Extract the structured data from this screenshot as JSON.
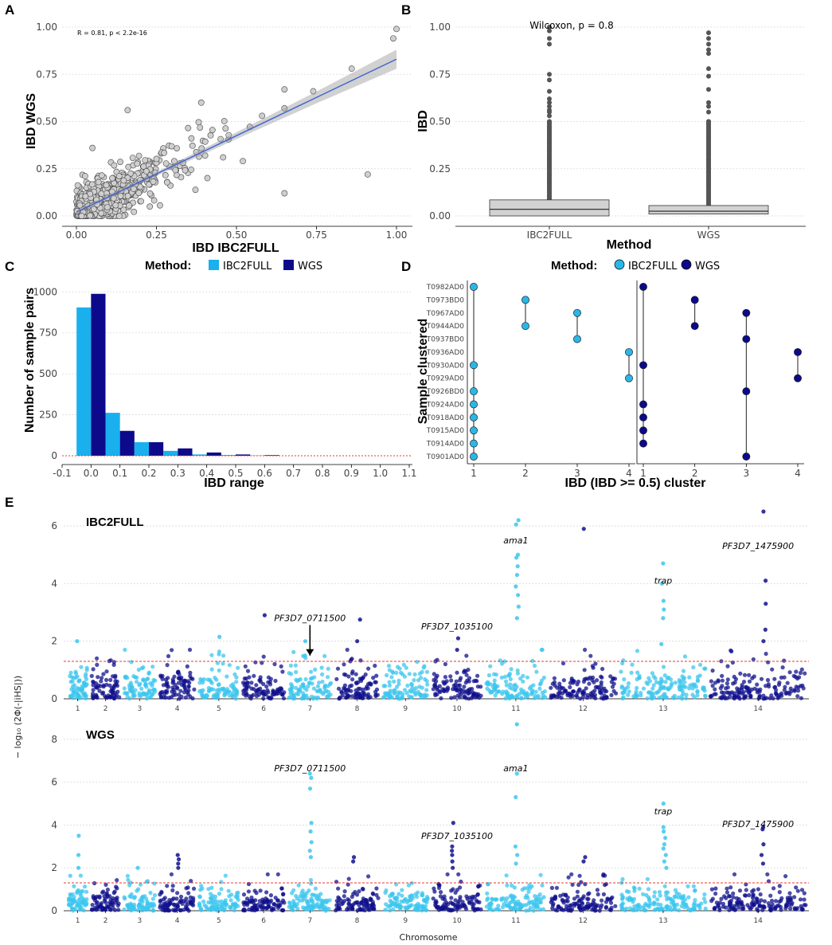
{
  "panels": {
    "A": {
      "letter": "A",
      "chart_data": {
        "type": "scatter",
        "xlabel": "IBD IBC2FULL",
        "ylabel": "IBD WGS",
        "xlim": [
          0,
          1
        ],
        "ylim": [
          0,
          1
        ],
        "xticks": [
          "0.00",
          "0.25",
          "0.50",
          "0.75",
          "1.00"
        ],
        "yticks": [
          "0.00",
          "0.25",
          "0.50",
          "0.75",
          "1.00"
        ],
        "annotation": "R = 0.81, p < 2.2e-16",
        "regression": {
          "intercept": 0.02,
          "slope": 0.81
        },
        "highlight_points": [
          {
            "x": 1.0,
            "y": 0.99
          },
          {
            "x": 0.99,
            "y": 0.94
          },
          {
            "x": 0.91,
            "y": 0.22
          },
          {
            "x": 0.86,
            "y": 0.78
          },
          {
            "x": 0.74,
            "y": 0.66
          },
          {
            "x": 0.65,
            "y": 0.67
          },
          {
            "x": 0.65,
            "y": 0.57
          },
          {
            "x": 0.65,
            "y": 0.12
          },
          {
            "x": 0.58,
            "y": 0.53
          },
          {
            "x": 0.52,
            "y": 0.29
          },
          {
            "x": 0.39,
            "y": 0.6
          },
          {
            "x": 0.16,
            "y": 0.56
          },
          {
            "x": 0.05,
            "y": 0.36
          }
        ],
        "n_points": 600
      }
    },
    "B": {
      "letter": "B",
      "chart_data": {
        "type": "box",
        "xlabel": "Method",
        "ylabel": "IBD",
        "categories": [
          "IBC2FULL",
          "WGS"
        ],
        "yticks": [
          "0.00",
          "0.25",
          "0.50",
          "0.75",
          "1.00"
        ],
        "ylim": [
          0,
          1
        ],
        "annotation": "Wilcoxon, p = 0.8",
        "boxes": [
          {
            "name": "IBC2FULL",
            "q1": 0.0,
            "median": 0.035,
            "q3": 0.085,
            "whisker_high": 0.2,
            "outliers": [
              1.0,
              0.98,
              0.94,
              0.91,
              0.75,
              0.72,
              0.66,
              0.62,
              0.6,
              0.58,
              0.56,
              0.55,
              0.53,
              0.5
            ]
          },
          {
            "name": "WGS",
            "q1": 0.01,
            "median": 0.025,
            "q3": 0.055,
            "whisker_high": 0.1,
            "outliers": [
              0.97,
              0.94,
              0.91,
              0.88,
              0.86,
              0.78,
              0.74,
              0.67,
              0.6,
              0.58,
              0.55,
              0.5
            ]
          }
        ]
      }
    },
    "C": {
      "letter": "C",
      "legend_title": "Method:",
      "legend": [
        {
          "label": "IBC2FULL",
          "color": "#1ab0ee"
        },
        {
          "label": "WGS",
          "color": "#0c0a8a"
        }
      ],
      "chart_data": {
        "type": "bar",
        "xlabel": "IBD range",
        "ylabel": "Number of sample pairs",
        "xticks": [
          "-0.1",
          "0.0",
          "0.1",
          "0.2",
          "0.3",
          "0.4",
          "0.5",
          "0.6",
          "0.7",
          "0.8",
          "0.9",
          "1.0",
          "1.1"
        ],
        "yticks": [
          "0",
          "250",
          "500",
          "750",
          "1000"
        ],
        "ylim": [
          0,
          1050
        ],
        "categories": [
          0.0,
          0.1,
          0.2,
          0.3,
          0.4,
          0.5,
          0.6
        ],
        "series": [
          {
            "name": "IBC2FULL",
            "values": [
              905,
              262,
              83,
              30,
              8,
              5,
              2
            ]
          },
          {
            "name": "WGS",
            "values": [
              988,
              152,
              83,
              45,
              20,
              8,
              4
            ]
          }
        ]
      }
    },
    "D": {
      "letter": "D",
      "legend_title": "Method:",
      "legend": [
        {
          "label": "IBC2FULL",
          "color": "#29b7e8"
        },
        {
          "label": "WGS",
          "color": "#0c0a8a"
        }
      ],
      "chart_data": {
        "type": "dot-cluster",
        "xlabel": "IBD (IBD >= 0.5) cluster",
        "ylabel": "Sample clustered",
        "samples": [
          "T0982AD0",
          "T0973BD0",
          "T0967AD0",
          "T0944AD0",
          "T0937BD0",
          "T0936AD0",
          "T0930AD0",
          "T0929AD0",
          "T0926BD0",
          "T0924AD0",
          "T0918AD0",
          "T0915AD0",
          "T0914AD0",
          "T0901AD0"
        ],
        "facets": [
          {
            "method": "IBC2FULL",
            "clusters": [
              {
                "cluster": "1",
                "members": [
                  "T0982AD0",
                  "T0930AD0",
                  "T0926BD0",
                  "T0924AD0",
                  "T0918AD0",
                  "T0915AD0",
                  "T0914AD0",
                  "T0901AD0"
                ]
              },
              {
                "cluster": "2",
                "members": [
                  "T0973BD0",
                  "T0944AD0"
                ]
              },
              {
                "cluster": "3",
                "members": [
                  "T0967AD0",
                  "T0937BD0"
                ]
              },
              {
                "cluster": "4",
                "members": [
                  "T0936AD0",
                  "T0929AD0"
                ]
              }
            ]
          },
          {
            "method": "WGS",
            "clusters": [
              {
                "cluster": "1",
                "members": [
                  "T0982AD0",
                  "T0930AD0",
                  "T0924AD0",
                  "T0918AD0",
                  "T0915AD0",
                  "T0914AD0"
                ]
              },
              {
                "cluster": "2",
                "members": [
                  "T0973BD0",
                  "T0944AD0"
                ]
              },
              {
                "cluster": "3",
                "members": [
                  "T0967AD0",
                  "T0937BD0",
                  "T0926BD0",
                  "T0901AD0"
                ]
              },
              {
                "cluster": "4",
                "members": [
                  "T0936AD0",
                  "T0929AD0"
                ]
              }
            ]
          }
        ]
      }
    },
    "E": {
      "letter": "E",
      "ylabel": "− log₁₀ (2Φ(-|iHS|))",
      "xlabel": "Chromosome",
      "threshold": 1.3,
      "colors": {
        "light": "#3cc6ee",
        "dark": "#10108c"
      },
      "chart_data": [
        {
          "type": "manhattan",
          "title": "IBC2FULL",
          "ylim": [
            0,
            6.5
          ],
          "yticks": [
            "0",
            "2",
            "4",
            "6"
          ],
          "chromosomes": [
            "1",
            "2",
            "3",
            "4",
            "5",
            "6",
            "7",
            "8",
            "9",
            "10",
            "11",
            "12",
            "13",
            "14"
          ],
          "peaks": [
            {
              "chr": 11,
              "values": [
                6.2,
                6.05,
                5.0,
                4.9,
                4.6,
                4.3,
                3.9,
                3.6,
                3.2,
                2.8
              ]
            },
            {
              "chr": 12,
              "values": [
                5.9
              ]
            },
            {
              "chr": 14,
              "values": [
                6.5,
                4.1,
                3.3,
                2.4,
                2.0
              ]
            },
            {
              "chr": 13,
              "values": [
                4.7,
                4.0,
                3.4,
                3.1,
                2.8,
                1.9
              ]
            },
            {
              "chr": 6,
              "values": [
                2.9
              ]
            },
            {
              "chr": 8,
              "values": [
                2.75,
                2.0
              ]
            },
            {
              "chr": 10,
              "values": [
                2.1,
                1.7
              ]
            },
            {
              "chr": 1,
              "values": [
                2.0
              ]
            },
            {
              "chr": 5,
              "values": [
                2.15
              ]
            },
            {
              "chr": 7,
              "values": [
                2.0,
                1.5
              ]
            }
          ],
          "labels": [
            {
              "text": "ama1",
              "chr": 11,
              "y": 5.4
            },
            {
              "text": "PF3D7_1475900",
              "chr": 14,
              "y": 5.2
            },
            {
              "text": "trap",
              "chr": 13,
              "y": 4.0
            },
            {
              "text": "PF3D7_0711500",
              "chr": 7,
              "y": 2.7,
              "arrow": true
            },
            {
              "text": "PF3D7_1035100",
              "chr": 10,
              "y": 2.4
            }
          ]
        },
        {
          "type": "manhattan",
          "title": "WGS",
          "ylim": [
            0,
            8.7
          ],
          "yticks": [
            "0",
            "2",
            "4",
            "6",
            "8"
          ],
          "chromosomes": [
            "1",
            "2",
            "3",
            "4",
            "5",
            "6",
            "7",
            "8",
            "9",
            "10",
            "11",
            "12",
            "13",
            "14"
          ],
          "peaks": [
            {
              "chr": 11,
              "values": [
                8.7,
                6.4,
                5.3,
                3.0,
                2.6,
                2.2
              ]
            },
            {
              "chr": 7,
              "values": [
                6.4,
                6.2,
                5.7,
                4.1,
                3.7,
                3.2,
                2.8,
                2.5
              ]
            },
            {
              "chr": 13,
              "values": [
                5.0,
                3.9,
                3.7,
                3.4,
                3.1,
                2.9,
                2.6,
                2.3,
                2.0
              ]
            },
            {
              "chr": 10,
              "values": [
                4.1,
                3.0,
                2.8,
                2.6,
                2.3,
                2.0
              ]
            },
            {
              "chr": 14,
              "values": [
                3.9,
                3.8,
                3.1,
                2.6,
                2.2
              ]
            },
            {
              "chr": 1,
              "values": [
                3.5,
                2.6,
                2.0
              ]
            },
            {
              "chr": 4,
              "values": [
                2.6,
                2.4,
                2.2,
                2.0
              ]
            },
            {
              "chr": 8,
              "values": [
                2.5,
                2.3
              ]
            },
            {
              "chr": 3,
              "values": [
                2.0
              ]
            },
            {
              "chr": 12,
              "values": [
                2.5,
                2.3
              ]
            }
          ],
          "labels": [
            {
              "text": "PF3D7_0711500",
              "chr": 7,
              "y": 6.5
            },
            {
              "text": "ama1",
              "chr": 11,
              "y": 6.5
            },
            {
              "text": "trap",
              "chr": 13,
              "y": 4.5
            },
            {
              "text": "PF3D7_1475900",
              "chr": 14,
              "y": 3.9
            },
            {
              "text": "PF3D7_1035100",
              "chr": 10,
              "y": 3.35
            }
          ]
        }
      ]
    }
  }
}
